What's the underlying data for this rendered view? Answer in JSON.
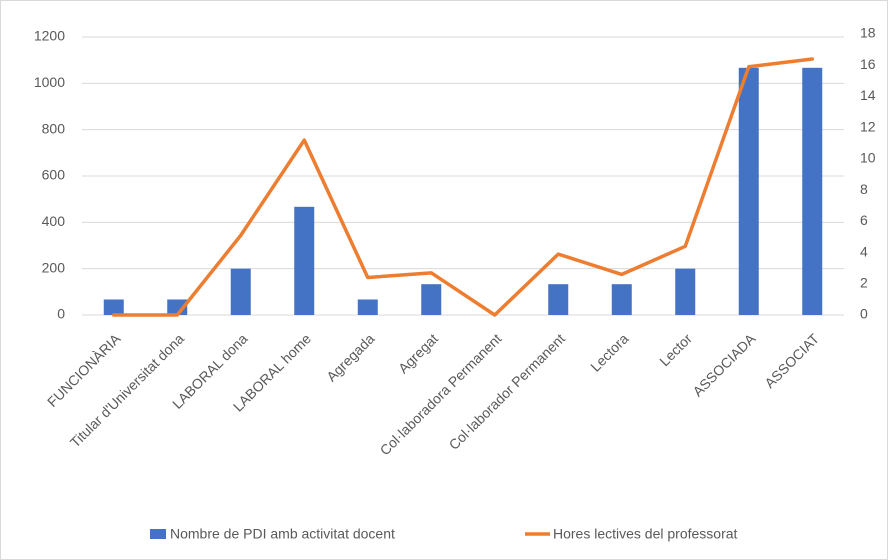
{
  "chart_data": {
    "type": "bar-line",
    "categories": [
      "FUNCIONÀRIA",
      "Titular d'Universitat dona",
      "LABORAL dona",
      "LABORAL home",
      "Agregada",
      "Agregat",
      "Col·laboradora Permanent",
      "Col·laborador Permanent",
      "Lectora",
      "Lector",
      "ASSOCIADA",
      "ASSOCIAT"
    ],
    "series": [
      {
        "name": "Nombre de PDI amb activitat docent",
        "type": "bar",
        "color": "#4472c4",
        "values": [
          67,
          67,
          200,
          467,
          67,
          133,
          0,
          133,
          133,
          200,
          1067,
          1067
        ]
      },
      {
        "name": "Hores lectives del professorat",
        "type": "line",
        "color": "#ed7d31",
        "axis": "y2",
        "values": [
          0,
          0,
          5.1,
          11.2,
          2.4,
          2.7,
          0,
          3.9,
          2.6,
          4.4,
          15.9,
          16.4
        ]
      }
    ],
    "ylim": [
      0,
      1200
    ],
    "yticks": [
      0,
      200,
      400,
      600,
      800,
      1000,
      1200
    ],
    "y2lim": [
      0,
      18
    ],
    "y2ticks": [
      0,
      2,
      4,
      6,
      8,
      10,
      12,
      14,
      16,
      18
    ],
    "grid": true,
    "legend": "bottom"
  }
}
